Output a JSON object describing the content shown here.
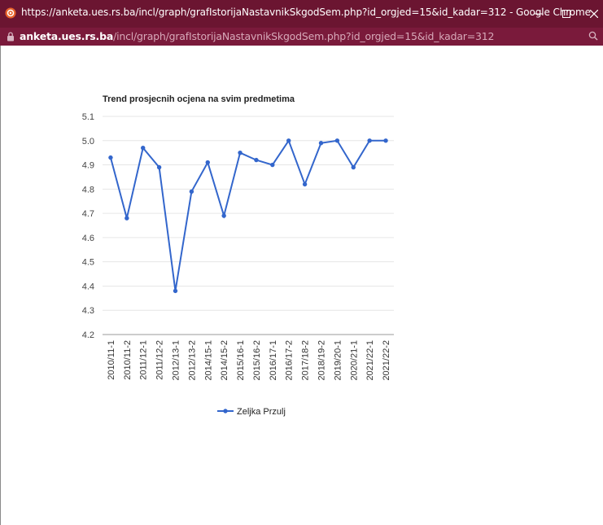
{
  "window": {
    "title": "https://anketa.ues.rs.ba/incl/graph/grafIstorijaNastavnikSkgodSem.php?id_orgjed=15&id_kadar=312 - Google Chrome",
    "url_host": "anketa.ues.rs.ba",
    "url_path": "/incl/graph/grafIstorijaNastavnikSkgodSem.php?id_orgjed=15&id_kadar=312",
    "icons": [
      "site-favicon-icon",
      "minimize-icon",
      "maximize-icon",
      "close-icon",
      "lock-icon",
      "zoom-icon"
    ]
  },
  "colors": {
    "titlebar": "#6b1531",
    "urlbar": "#7a1a3b",
    "series": "#3366cc"
  },
  "chart_data": {
    "type": "line",
    "title": "Trend prosjecnih ocjena na svim predmetima",
    "xlabel": "",
    "ylabel": "",
    "categories": [
      "2010/11-1",
      "2010/11-2",
      "2011/12-1",
      "2011/12-2",
      "2012/13-1",
      "2012/13-2",
      "2014/15-1",
      "2014/15-2",
      "2015/16-1",
      "2015/16-2",
      "2016/17-1",
      "2016/17-2",
      "2017/18-2",
      "2018/19-2",
      "2019/20-1",
      "2020/21-1",
      "2021/22-1",
      "2021/22-2"
    ],
    "series": [
      {
        "name": "Zeljka Przulj",
        "values": [
          4.93,
          4.68,
          4.97,
          4.89,
          4.38,
          4.79,
          4.91,
          4.69,
          4.95,
          4.92,
          4.9,
          5.0,
          4.82,
          4.99,
          5.0,
          4.89,
          5.0,
          5.0
        ]
      }
    ],
    "ylim": [
      4.2,
      5.1
    ],
    "yticks": [
      "4.2",
      "4.3",
      "4.4",
      "4.5",
      "4.6",
      "4.7",
      "4.8",
      "4.9",
      "5.0",
      "5.1"
    ],
    "grid": true,
    "legend": "bottom"
  }
}
